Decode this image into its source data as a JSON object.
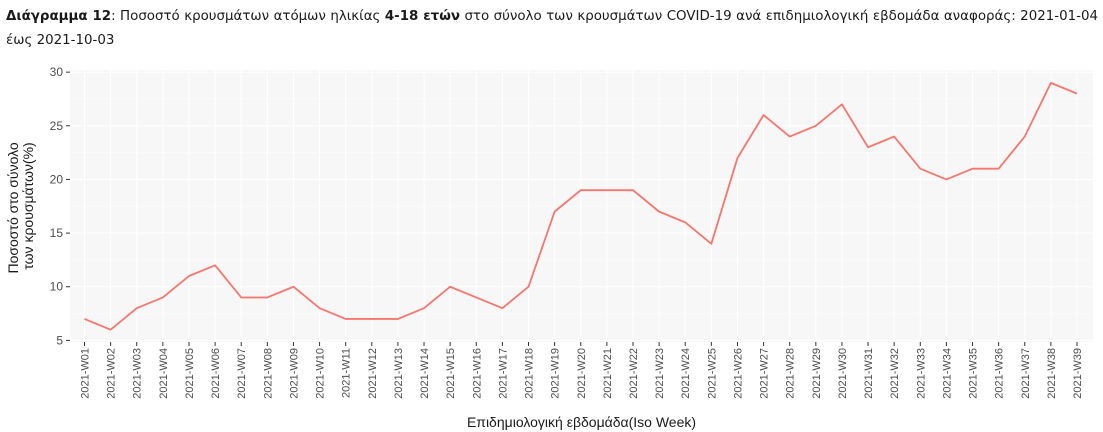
{
  "caption": {
    "label": "Διάγραμμα 12",
    "text_before_bold": ": Ποσοστό κρουσμάτων ατόμων ηλικίας ",
    "bold_text": "4-18 ετών",
    "text_after_bold": " στο σύνολο των κρουσμάτων COVID-19 ανά επιδημιολογική εβδομάδα αναφοράς: 2021-01-04 έως 2021-10-03"
  },
  "chart_data": {
    "type": "line",
    "categories": [
      "2021-W01",
      "2021-W02",
      "2021-W03",
      "2021-W04",
      "2021-W05",
      "2021-W06",
      "2021-W07",
      "2021-W08",
      "2021-W09",
      "2021-W10",
      "2021-W11",
      "2021-W12",
      "2021-W13",
      "2021-W14",
      "2021-W15",
      "2021-W16",
      "2021-W17",
      "2021-W18",
      "2021-W19",
      "2021-W20",
      "2021-W21",
      "2021-W22",
      "2021-W23",
      "2021-W24",
      "2021-W25",
      "2021-W26",
      "2021-W27",
      "2021-W28",
      "2021-W29",
      "2021-W30",
      "2021-W31",
      "2021-W32",
      "2021-W33",
      "2021-W34",
      "2021-W35",
      "2021-W36",
      "2021-W37",
      "2021-W38",
      "2021-W39"
    ],
    "values": [
      7,
      6,
      8,
      9,
      11,
      12,
      9,
      9,
      10,
      8,
      7,
      7,
      7,
      8,
      10,
      9,
      8,
      10,
      17,
      19,
      19,
      19,
      17,
      16,
      14,
      22,
      26,
      24,
      25,
      27,
      23,
      24,
      21,
      20,
      21,
      21,
      24,
      29,
      28
    ],
    "ylabel_line1": "Ποσοστό στο σύνολο",
    "ylabel_line2": "των κρουσμάτων(%)",
    "xlabel": "Επιδημιολογική εβδομάδα(Iso Week)",
    "yticks": [
      5,
      10,
      15,
      20,
      25,
      30
    ],
    "ylim": [
      4.85,
      30.2
    ],
    "grid": true,
    "line_color": "#f8766d",
    "panel_color": "#f7f7f7",
    "grid_major_color": "#ffffff",
    "grid_minor_color": "#fcfcfc"
  }
}
